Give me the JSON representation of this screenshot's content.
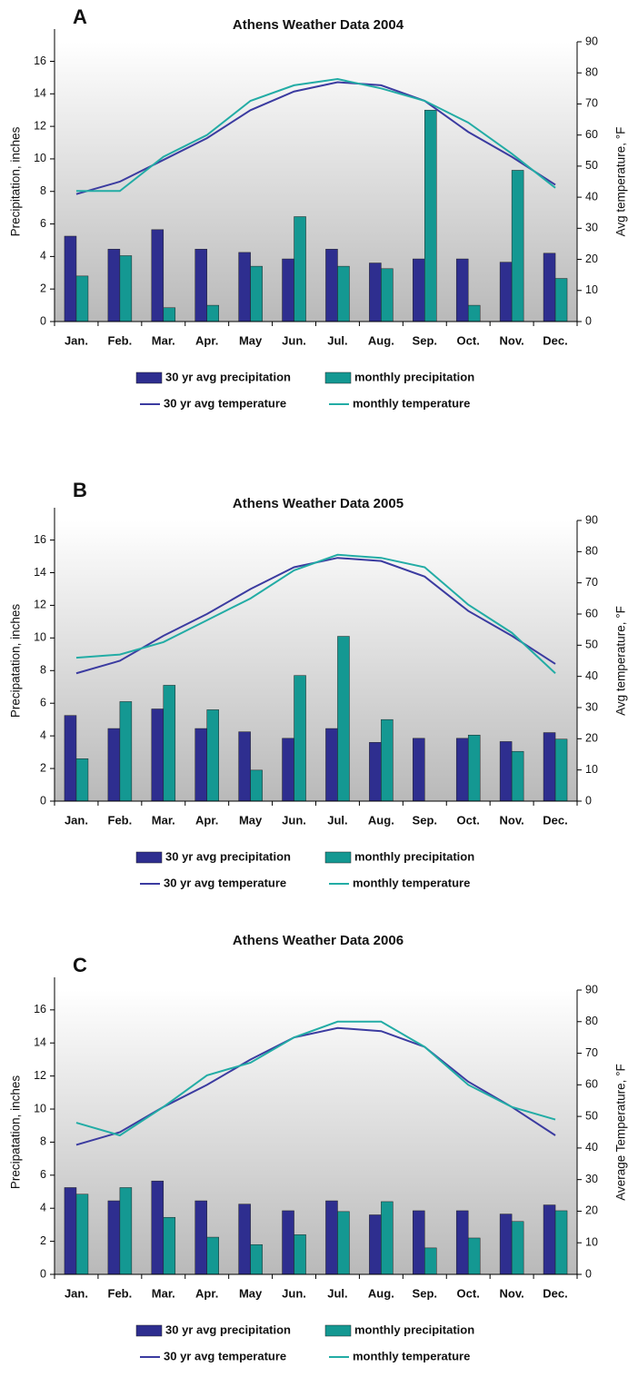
{
  "chart_data": [
    {
      "type": "bar",
      "panel_label": "A",
      "title": "Athens Weather Data 2004",
      "y_label": "Precipitation, inches",
      "y2_label": "Avg temperature,  °F",
      "categories": [
        "Jan.",
        "Feb.",
        "Mar.",
        "Apr.",
        "May",
        "Jun.",
        "Jul.",
        "Aug.",
        "Sep.",
        "Oct.",
        "Nov.",
        "Dec."
      ],
      "ylim": [
        0,
        17.2
      ],
      "yticks": [
        0,
        2,
        4,
        6,
        8,
        10,
        12,
        14,
        16
      ],
      "y2lim": [
        0,
        90
      ],
      "y2ticks": [
        0,
        10,
        20,
        30,
        40,
        50,
        60,
        70,
        80,
        90
      ],
      "series": [
        {
          "name": "30 yr avg precipitation",
          "type": "bar",
          "color": "#2e2e8f",
          "values": [
            5.25,
            4.45,
            5.65,
            4.45,
            4.25,
            3.85,
            4.45,
            3.6,
            3.85,
            3.85,
            3.65,
            4.2
          ]
        },
        {
          "name": "monthly precipitation",
          "type": "bar",
          "color": "#149892",
          "values": [
            2.8,
            4.05,
            0.85,
            1.0,
            3.4,
            6.45,
            3.4,
            3.25,
            13.0,
            1.0,
            9.3,
            2.65
          ]
        },
        {
          "name": "30 yr avg temperature",
          "type": "line",
          "axis": "y2",
          "color": "#3b3ba0",
          "values": [
            41,
            45,
            52,
            59,
            68,
            74,
            77,
            76,
            71,
            61,
            53,
            44
          ]
        },
        {
          "name": "monthly temperature",
          "type": "line",
          "axis": "y2",
          "color": "#22aca5",
          "values": [
            42,
            42,
            53,
            60,
            71,
            76,
            78,
            75,
            71,
            64,
            54,
            43
          ]
        }
      ]
    },
    {
      "type": "bar",
      "panel_label": "B",
      "title": "Athens Weather Data 2005",
      "y_label": "Precipatation, inches",
      "y2_label": "Avg temperature,  °F",
      "categories": [
        "Jan.",
        "Feb.",
        "Mar.",
        "Apr.",
        "May",
        "Jun.",
        "Jul.",
        "Aug.",
        "Sep.",
        "Oct.",
        "Nov.",
        "Dec."
      ],
      "ylim": [
        0,
        17.2
      ],
      "yticks": [
        0,
        2,
        4,
        6,
        8,
        10,
        12,
        14,
        16
      ],
      "y2lim": [
        0,
        90
      ],
      "y2ticks": [
        0,
        10,
        20,
        30,
        40,
        50,
        60,
        70,
        80,
        90
      ],
      "series": [
        {
          "name": "30 yr avg precipitation",
          "type": "bar",
          "color": "#2e2e8f",
          "values": [
            5.25,
            4.45,
            5.65,
            4.45,
            4.25,
            3.85,
            4.45,
            3.6,
            3.85,
            3.85,
            3.65,
            4.2
          ]
        },
        {
          "name": "monthly precipitation",
          "type": "bar",
          "color": "#149892",
          "values": [
            2.6,
            6.1,
            7.1,
            5.6,
            1.9,
            7.7,
            10.1,
            5.0,
            0,
            4.05,
            3.05,
            3.8
          ]
        },
        {
          "name": "30 yr avg temperature",
          "type": "line",
          "axis": "y2",
          "color": "#3b3ba0",
          "values": [
            41,
            45,
            53,
            60,
            68,
            75,
            78,
            77,
            72,
            61,
            53,
            44
          ]
        },
        {
          "name": "monthly temperature",
          "type": "line",
          "axis": "y2",
          "color": "#22aca5",
          "values": [
            46,
            47,
            51,
            58,
            65,
            74,
            79,
            78,
            75,
            63,
            54,
            41
          ]
        }
      ]
    },
    {
      "type": "bar",
      "panel_label": "C",
      "title": "Athens Weather Data 2006",
      "y_label": "Precipatation, inches",
      "y2_label": "Average Temperature,  °F",
      "categories": [
        "Jan.",
        "Feb.",
        "Mar.",
        "Apr.",
        "May",
        "Jun.",
        "Jul.",
        "Aug.",
        "Sep.",
        "Oct.",
        "Nov.",
        "Dec."
      ],
      "ylim": [
        0,
        17.2
      ],
      "yticks": [
        0,
        2,
        4,
        6,
        8,
        10,
        12,
        14,
        16
      ],
      "y2lim": [
        0,
        90
      ],
      "y2ticks": [
        0,
        10,
        20,
        30,
        40,
        50,
        60,
        70,
        80,
        90
      ],
      "series": [
        {
          "name": "30 yr avg precipitation",
          "type": "bar",
          "color": "#2e2e8f",
          "values": [
            5.25,
            4.45,
            5.65,
            4.45,
            4.25,
            3.85,
            4.45,
            3.6,
            3.85,
            3.85,
            3.65,
            4.2
          ]
        },
        {
          "name": "monthly precipitation",
          "type": "bar",
          "color": "#149892",
          "values": [
            4.85,
            5.25,
            3.45,
            2.25,
            1.8,
            2.4,
            3.8,
            4.4,
            1.6,
            2.2,
            3.2,
            3.85
          ]
        },
        {
          "name": "30 yr avg temperature",
          "type": "line",
          "axis": "y2",
          "color": "#3b3ba0",
          "values": [
            41,
            45,
            53,
            60,
            68,
            75,
            78,
            77,
            72,
            61,
            53,
            44
          ]
        },
        {
          "name": "monthly temperature",
          "type": "line",
          "axis": "y2",
          "color": "#22aca5",
          "values": [
            48,
            44,
            53,
            63,
            67,
            75,
            80,
            80,
            72,
            60,
            53,
            49
          ]
        }
      ]
    }
  ]
}
